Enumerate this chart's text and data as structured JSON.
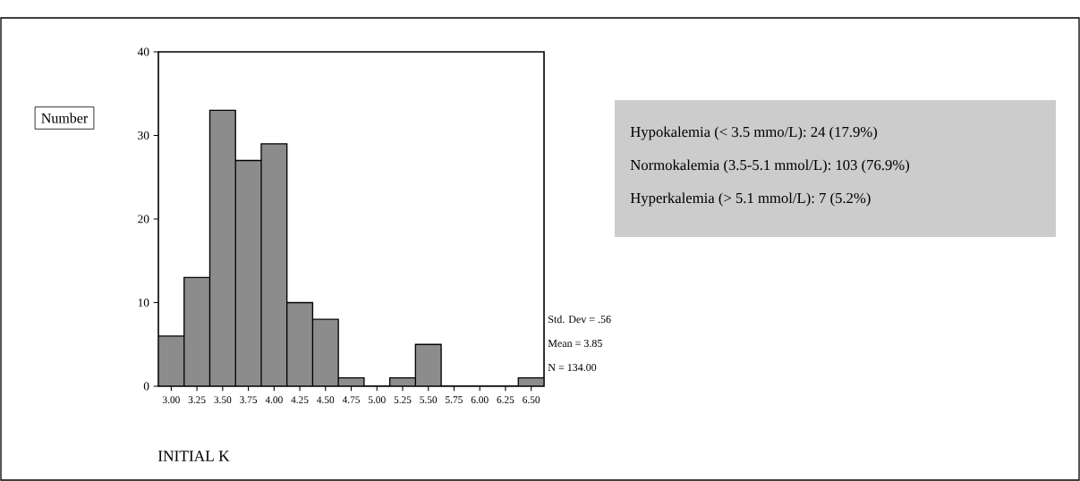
{
  "chart_data": {
    "type": "histogram",
    "xlabel": "INITIAL K",
    "ylabel": "Number",
    "bins": [
      2.875,
      3.125,
      3.375,
      3.625,
      3.875,
      4.125,
      4.375,
      4.625,
      4.875,
      5.125,
      5.375,
      5.625,
      5.875,
      6.125,
      6.375,
      6.625
    ],
    "values": [
      6,
      13,
      33,
      27,
      29,
      10,
      8,
      1,
      0,
      1,
      5,
      0,
      0,
      0,
      1
    ],
    "color": "#8c8c8c",
    "xlim": [
      2.875,
      6.625
    ],
    "xticks": [
      {
        "value": 3.0,
        "label": "3.00"
      },
      {
        "value": 3.25,
        "label": "3.25"
      },
      {
        "value": 3.5,
        "label": "3.50"
      },
      {
        "value": 3.75,
        "label": "3.75"
      },
      {
        "value": 4.0,
        "label": "4.00"
      },
      {
        "value": 4.25,
        "label": "4.25"
      },
      {
        "value": 4.5,
        "label": "4.50"
      },
      {
        "value": 4.75,
        "label": "4.75"
      },
      {
        "value": 5.0,
        "label": "5.00"
      },
      {
        "value": 5.25,
        "label": "5.25"
      },
      {
        "value": 5.5,
        "label": "5.50"
      },
      {
        "value": 5.75,
        "label": "5.75"
      },
      {
        "value": 6.0,
        "label": "6.00"
      },
      {
        "value": 6.25,
        "label": "6.25"
      },
      {
        "value": 6.5,
        "label": "6.50"
      }
    ],
    "ylim": [
      0,
      40
    ],
    "yticks": [
      0,
      10,
      20,
      30,
      40
    ],
    "grid": false,
    "annotations": [
      "Std. Dev = .56",
      "Mean = 3.85",
      "N = 134.00",
      "Hypokalemia (< 3.5 mmo/L): 24 (17.9%)",
      "Normokalemia (3.5-5.1 mmol/L): 103 (76.9%)",
      "Hyperkalemia (> 5.1 mmol/L): 7 (5.2%)"
    ]
  }
}
